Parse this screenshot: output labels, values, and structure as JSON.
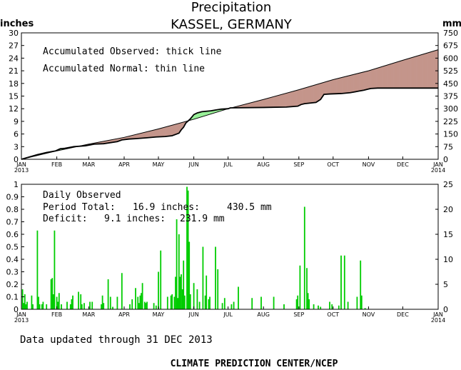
{
  "header": {
    "title": "Precipitation",
    "subtitle": "KASSEL, GERMANY",
    "left_unit": "inches",
    "right_unit": "mm"
  },
  "colors": {
    "surplus": "#98f098",
    "deficit": "#c4958b",
    "bars": "#00cc00",
    "line": "#000000"
  },
  "chart_data": [
    {
      "type": "area",
      "name": "accumulated",
      "notes": [
        "Accumulated Observed: thick line",
        "Accumulated Normal: thin line"
      ],
      "ylim": [
        0,
        30
      ],
      "yticks": [
        0,
        3,
        6,
        9,
        12,
        15,
        18,
        21,
        24,
        27,
        30
      ],
      "y2lim": [
        0,
        750
      ],
      "y2ticks": [
        0,
        75,
        150,
        225,
        300,
        375,
        450,
        525,
        600,
        675,
        750
      ],
      "xlim": [
        0,
        365
      ],
      "xticks": [
        {
          "d": 0,
          "label": "JAN",
          "sub": "2013"
        },
        {
          "d": 31,
          "label": "FEB"
        },
        {
          "d": 59,
          "label": "MAR"
        },
        {
          "d": 90,
          "label": "APR"
        },
        {
          "d": 120,
          "label": "MAY"
        },
        {
          "d": 151,
          "label": "JUN"
        },
        {
          "d": 181,
          "label": "JUL"
        },
        {
          "d": 212,
          "label": "AUG"
        },
        {
          "d": 243,
          "label": "SEP"
        },
        {
          "d": 273,
          "label": "OCT"
        },
        {
          "d": 304,
          "label": "NOV"
        },
        {
          "d": 334,
          "label": "DEC"
        },
        {
          "d": 365,
          "label": "JAN",
          "sub": "2014"
        }
      ],
      "normal": [
        [
          0,
          0
        ],
        [
          31,
          2.0
        ],
        [
          59,
          3.6
        ],
        [
          90,
          5.2
        ],
        [
          120,
          7.2
        ],
        [
          151,
          9.5
        ],
        [
          181,
          12.0
        ],
        [
          212,
          14.2
        ],
        [
          243,
          16.5
        ],
        [
          273,
          18.9
        ],
        [
          304,
          21.0
        ],
        [
          334,
          23.5
        ],
        [
          365,
          26.0
        ]
      ],
      "observed": [
        [
          0,
          0
        ],
        [
          14,
          1.1
        ],
        [
          22,
          1.6
        ],
        [
          30,
          2.0
        ],
        [
          34,
          2.5
        ],
        [
          38,
          2.6
        ],
        [
          46,
          3.0
        ],
        [
          56,
          3.2
        ],
        [
          64,
          3.6
        ],
        [
          72,
          3.7
        ],
        [
          84,
          4.2
        ],
        [
          88,
          4.6
        ],
        [
          94,
          4.8
        ],
        [
          100,
          4.9
        ],
        [
          110,
          5.1
        ],
        [
          118,
          5.3
        ],
        [
          126,
          5.4
        ],
        [
          132,
          5.6
        ],
        [
          138,
          6.2
        ],
        [
          140,
          7.0
        ],
        [
          142,
          7.6
        ],
        [
          144,
          8.6
        ],
        [
          146,
          9.1
        ],
        [
          148,
          9.6
        ],
        [
          151,
          10.6
        ],
        [
          154,
          11.0
        ],
        [
          158,
          11.3
        ],
        [
          166,
          11.5
        ],
        [
          170,
          11.7
        ],
        [
          175,
          11.9
        ],
        [
          181,
          12.0
        ],
        [
          183,
          12.2
        ],
        [
          212,
          12.3
        ],
        [
          232,
          12.4
        ],
        [
          242,
          12.6
        ],
        [
          245,
          13.0
        ],
        [
          248,
          13.2
        ],
        [
          258,
          13.5
        ],
        [
          262,
          14.2
        ],
        [
          265,
          15.4
        ],
        [
          270,
          15.5
        ],
        [
          280,
          15.6
        ],
        [
          284,
          15.7
        ],
        [
          288,
          15.8
        ],
        [
          292,
          16.0
        ],
        [
          296,
          16.2
        ],
        [
          300,
          16.4
        ],
        [
          303,
          16.6
        ],
        [
          306,
          16.8
        ],
        [
          312,
          16.9
        ],
        [
          365,
          16.9
        ]
      ]
    },
    {
      "type": "bar",
      "name": "daily",
      "ylim": [
        0,
        1
      ],
      "yticks": [
        0,
        0.1,
        0.2,
        0.3,
        0.4,
        0.5,
        0.6,
        0.7,
        0.8,
        0.9,
        1
      ],
      "y2lim": [
        0,
        25
      ],
      "y2ticks": [
        0,
        5,
        10,
        15,
        20,
        25
      ],
      "x": [
        1,
        2,
        3,
        4,
        5,
        9,
        10,
        14,
        15,
        16,
        18,
        19,
        22,
        26,
        27,
        28,
        29,
        31,
        32,
        33,
        35,
        40,
        43,
        44,
        45,
        50,
        52,
        53,
        55,
        60,
        62,
        70,
        71,
        72,
        76,
        78,
        80,
        84,
        88,
        95,
        97,
        100,
        102,
        103,
        104,
        105,
        106,
        108,
        109,
        110,
        116,
        118,
        120,
        122,
        128,
        131,
        132,
        134,
        135,
        136,
        137,
        138,
        139,
        140,
        141,
        142,
        143,
        145,
        146,
        147,
        148,
        151,
        154,
        156,
        159,
        161,
        162,
        164,
        165,
        170,
        172,
        176,
        178,
        184,
        186,
        190,
        202,
        210,
        221,
        230,
        241,
        242,
        244,
        248,
        250,
        251,
        252,
        256,
        260,
        262,
        270,
        272,
        278,
        280,
        283,
        286,
        294,
        297,
        298,
        301
      ],
      "values": [
        0.16,
        0.05,
        0.12,
        0.04,
        0.06,
        0.11,
        0.04,
        0.63,
        0.1,
        0.04,
        0.04,
        0.06,
        0.04,
        0.24,
        0.25,
        0.12,
        0.63,
        0.1,
        0.06,
        0.13,
        0.04,
        0.06,
        0.04,
        0.08,
        0.11,
        0.14,
        0.12,
        0.04,
        0.05,
        0.06,
        0.06,
        0.04,
        0.11,
        0.05,
        0.24,
        0.1,
        0.02,
        0.1,
        0.29,
        0.04,
        0.08,
        0.17,
        0.1,
        0.05,
        0.11,
        0.13,
        0.21,
        0.06,
        0.05,
        0.06,
        0.05,
        0.03,
        0.3,
        0.47,
        0.1,
        0.11,
        0.12,
        0.1,
        0.26,
        0.72,
        0.09,
        0.6,
        0.26,
        0.28,
        0.16,
        0.39,
        0.11,
        0.98,
        0.95,
        0.54,
        0.12,
        0.21,
        0.16,
        0.06,
        0.5,
        0.11,
        0.27,
        0.08,
        0.1,
        0.5,
        0.32,
        0.05,
        0.09,
        0.04,
        0.06,
        0.18,
        0.09,
        0.1,
        0.1,
        0.04,
        0.08,
        0.11,
        0.35,
        0.82,
        0.33,
        0.13,
        0.08,
        0.04,
        0.03,
        0.02,
        0.06,
        0.04,
        0.03,
        0.43,
        0.43,
        0.06,
        0.1,
        0.39,
        0.11,
        0.01
      ],
      "text": {
        "label": "Daily Observed",
        "total_label": "Period Total:",
        "total_in": "16.9 inches:",
        "total_mm": "430.5 mm",
        "deficit_label": "Deficit:",
        "deficit_in": "9.1 inches:",
        "deficit_mm": "231.9 mm"
      }
    }
  ],
  "footer": {
    "updated": "Data updated through 31 DEC 2013",
    "credit": "CLIMATE PREDICTION CENTER/NCEP"
  }
}
